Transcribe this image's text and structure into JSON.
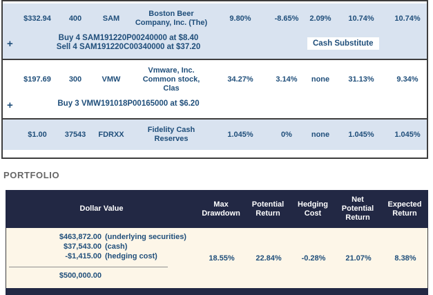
{
  "colors": {
    "row_blue": "#d9e3f0",
    "table_text_navy": "#1f4e7a",
    "portfolio_header_navy": "#222844",
    "portfolio_body_cream": "#fdf6e8",
    "border_dark": "#3d3d3d"
  },
  "holdings": {
    "rows": [
      {
        "expander": "+",
        "price": "$332.94",
        "quantity": "400",
        "symbol": "SAM",
        "name_lines": [
          "Boston Beer",
          "Company, Inc. (The)"
        ],
        "metrics": [
          "9.80%",
          "-8.65%",
          "2.09%",
          "10.74%",
          "10.74%"
        ],
        "hedges": [
          "Buy 4 SAM191220P00240000 at $8.40",
          "Sell 4 SAM191220C00340000 at $37.20"
        ],
        "badge": "Cash Substitute"
      },
      {
        "expander": "+",
        "price": "$197.69",
        "quantity": "300",
        "symbol": "VMW",
        "name_lines": [
          "Vmware, Inc.",
          "Common stock,",
          "Clas"
        ],
        "metrics": [
          "34.27%",
          "3.14%",
          "none",
          "31.13%",
          "9.34%"
        ],
        "hedges": [
          "Buy 3 VMW191018P00165000 at $6.20"
        ]
      },
      {
        "price": "$1.00",
        "quantity": "37543",
        "symbol": "FDRXX",
        "name_lines": [
          "Fidelity Cash",
          "Reserves"
        ],
        "metrics": [
          "1.045%",
          "0%",
          "none",
          "1.045%",
          "1.045%"
        ]
      }
    ]
  },
  "portfolio": {
    "heading": "PORTFOLIO",
    "columns": [
      "Dollar Value",
      "Max Drawdown",
      "Potential Return",
      "Hedging Cost",
      "Net Potential Return",
      "Expected Return"
    ],
    "row": {
      "dollar_lines": [
        {
          "amount": "$463,872.00",
          "label": "(underlying securities)"
        },
        {
          "amount": "$37,543.00",
          "label": "(cash)"
        },
        {
          "amount": "-$1,415.00",
          "label": "(hedging cost)"
        }
      ],
      "total": "$500,000.00",
      "metrics": [
        "18.55%",
        "22.84%",
        "-0.28%",
        "21.07%",
        "8.38%"
      ]
    }
  }
}
